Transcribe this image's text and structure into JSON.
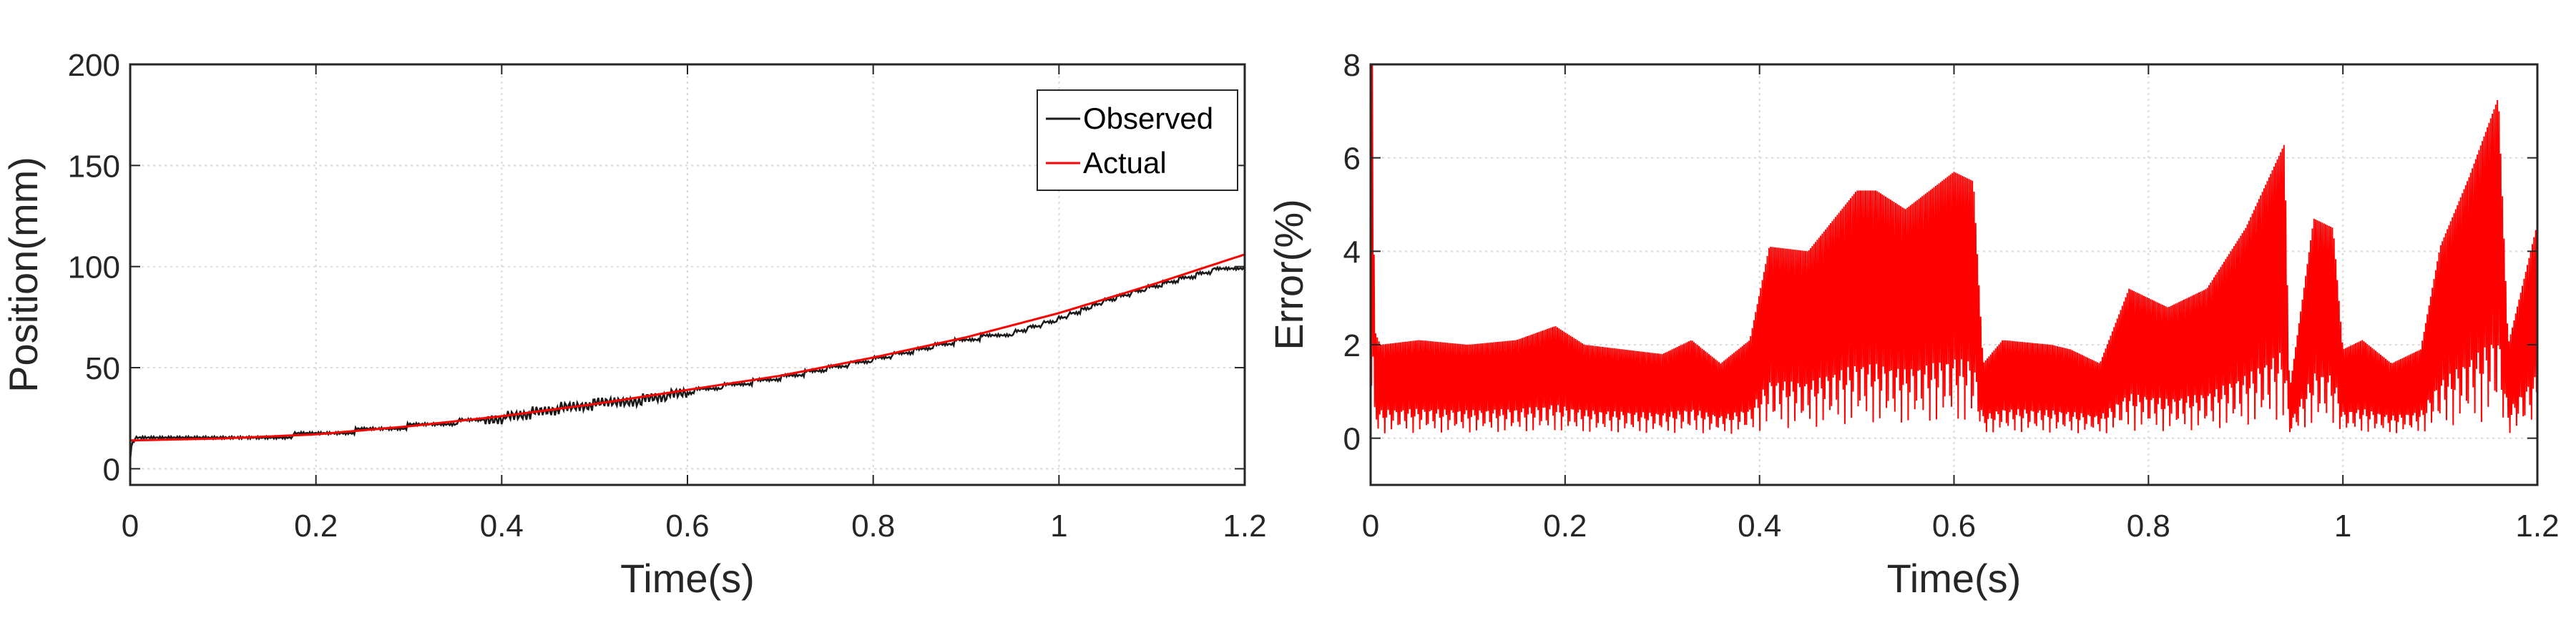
{
  "colors": {
    "observed": "#1a1a1a",
    "actual": "#ff0000",
    "error": "#ff0000",
    "grid": "#d9d9d9",
    "axis": "#262626"
  },
  "chart_data": [
    {
      "type": "line",
      "title": "",
      "xlabel": "Time(s)",
      "ylabel": "Position(mm)",
      "xlim": [
        0,
        1.2
      ],
      "ylim": [
        -8,
        200
      ],
      "xticks": [
        "0",
        "0.2",
        "0.4",
        "0.6",
        "0.8",
        "1",
        "1.2"
      ],
      "xtick_values": [
        0,
        0.2,
        0.4,
        0.6,
        0.8,
        1,
        1.2
      ],
      "yticks": [
        "0",
        "50",
        "100",
        "150",
        "200"
      ],
      "ytick_values": [
        0,
        50,
        100,
        150,
        200
      ],
      "grid": true,
      "legend_position": "top-right",
      "series": [
        {
          "name": "Observed",
          "color": "#1a1a1a",
          "x": [
            0,
            0.001,
            0.003,
            0.005,
            0.1,
            0.2,
            0.3,
            0.4,
            0.45,
            0.5,
            0.55,
            0.6,
            0.7,
            0.8,
            0.9,
            0.95,
            1.0,
            1.05,
            1.1,
            1.15,
            1.18,
            1.2
          ],
          "y": [
            5,
            10,
            14,
            14.5,
            15,
            17,
            21,
            25,
            29,
            32,
            34,
            38,
            45,
            54,
            64,
            67,
            74,
            83,
            90,
            96,
            100,
            100
          ]
        },
        {
          "name": "Actual",
          "color": "#ff0000",
          "x": [
            0,
            0.1,
            0.2,
            0.3,
            0.4,
            0.5,
            0.6,
            0.7,
            0.8,
            0.9,
            1.0,
            1.1,
            1.2
          ],
          "y": [
            14,
            15,
            17,
            21,
            26,
            32,
            39,
            46,
            55,
            65,
            77,
            91,
            106
          ]
        }
      ]
    },
    {
      "type": "line",
      "title": "",
      "xlabel": "Time(s)",
      "ylabel": "Error(%)",
      "xlim": [
        0,
        1.2
      ],
      "ylim": [
        -1,
        8
      ],
      "xticks": [
        "0",
        "0.2",
        "0.4",
        "0.6",
        "0.8",
        "1",
        "1.2"
      ],
      "xtick_values": [
        0,
        0.2,
        0.4,
        0.6,
        0.8,
        1,
        1.2
      ],
      "yticks": [
        "0",
        "2",
        "4",
        "6",
        "8"
      ],
      "ytick_values": [
        0,
        2,
        4,
        6,
        8
      ],
      "grid": true,
      "series": [
        {
          "color": "#ff0000",
          "envelope_x": [
            0,
            0.002,
            0.004,
            0.01,
            0.05,
            0.1,
            0.15,
            0.19,
            0.22,
            0.26,
            0.3,
            0.33,
            0.36,
            0.39,
            0.41,
            0.45,
            0.5,
            0.52,
            0.55,
            0.6,
            0.62,
            0.63,
            0.65,
            0.7,
            0.72,
            0.75,
            0.78,
            0.8,
            0.82,
            0.86,
            0.9,
            0.94,
            0.945,
            0.97,
            0.99,
            1.0,
            1.02,
            1.05,
            1.08,
            1.1,
            1.13,
            1.16,
            1.17,
            1.2
          ],
          "envelope_y": [
            8,
            8,
            2.3,
            2.0,
            2.1,
            2.0,
            2.1,
            2.4,
            2.0,
            1.9,
            1.8,
            2.1,
            1.6,
            2.1,
            4.1,
            4.0,
            5.3,
            5.3,
            4.9,
            5.7,
            5.5,
            1.6,
            2.1,
            2.0,
            1.9,
            1.6,
            3.2,
            3.0,
            2.8,
            3.2,
            4.5,
            6.3,
            1.0,
            4.7,
            4.5,
            1.9,
            2.1,
            1.6,
            1.9,
            4.1,
            5.6,
            7.3,
            2.0,
            4.6
          ],
          "baseline": 0
        }
      ]
    }
  ]
}
